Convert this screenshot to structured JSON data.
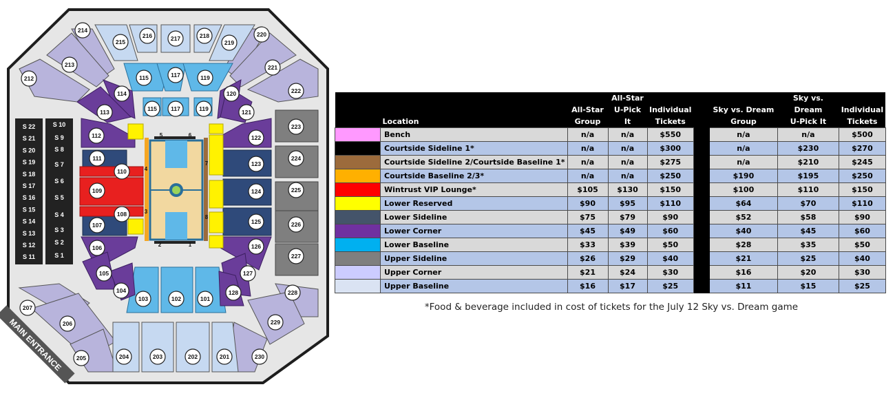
{
  "map": {
    "entrance_label": "MAIN ENTRANCE",
    "court_labels": [
      "5",
      "6",
      "4",
      "3",
      "7",
      "8",
      "2",
      "1"
    ],
    "suites_left": [
      "S 22",
      "S 21",
      "S 20",
      "S 19",
      "S 18",
      "S 17",
      "S 16",
      "S 15",
      "S 14",
      "S 13",
      "S 12",
      "S 11"
    ],
    "suites_right": [
      "S 10",
      "S 9",
      "S 8",
      "S 7",
      "S 6",
      "S 5",
      "S 4",
      "S 3",
      "S 2",
      "S 1"
    ],
    "sections": [
      "214",
      "215",
      "216",
      "217",
      "218",
      "219",
      "220",
      "213",
      "221",
      "212",
      "222",
      "115",
      "117",
      "119",
      "115",
      "117",
      "119",
      "114",
      "120",
      "113",
      "121",
      "223",
      "112",
      "122",
      "111",
      "123",
      "224",
      "110",
      "109",
      "124",
      "225",
      "108",
      "107",
      "125",
      "226",
      "106",
      "126",
      "227",
      "105",
      "127",
      "104",
      "128",
      "228",
      "103",
      "102",
      "101",
      "207",
      "229",
      "206",
      "205",
      "204",
      "203",
      "202",
      "201",
      "230"
    ],
    "colors": {
      "upper_corner": "#b8b4dc",
      "upper_baseline": "#c6d9f1",
      "upper_sideline": "#7f7f7f",
      "lower_corner": "#6a3d9a",
      "lower_sideline": "#2f4a7a",
      "lower_baseline": "#5fb8e8",
      "lower_reserved": "#fff200",
      "wintrust": "#e8201f",
      "courtside": "#f5a623",
      "court": "#f2d8a0"
    }
  },
  "table": {
    "headers": [
      {
        "line1": "",
        "line2": "Location"
      },
      {
        "line1": "All-Star",
        "line2": "Group"
      },
      {
        "line1": "All-Star",
        "line2": "U-Pick It"
      },
      {
        "line1": "Individual",
        "line2": "Tickets"
      },
      {
        "line1": "Sky vs. Dream",
        "line2": "Group"
      },
      {
        "line1": "Sky vs. Dream",
        "line2": "U-Pick It"
      },
      {
        "line1": "Individual",
        "line2": "Tickets"
      }
    ],
    "rows": [
      {
        "color": "#ff99ff",
        "location": "Bench",
        "asg": "n/a",
        "asu": "n/a",
        "asi": "$550",
        "sdg": "n/a",
        "sdu": "n/a",
        "sdi": "$500"
      },
      {
        "color": "#000000",
        "location": "Courtside Sideline 1*",
        "asg": "n/a",
        "asu": "n/a",
        "asi": "$300",
        "sdg": "n/a",
        "sdu": "$230",
        "sdi": "$270"
      },
      {
        "color": "#9c6b3c",
        "location": "Courtside Sideline 2/Courtside Baseline 1*",
        "asg": "n/a",
        "asu": "n/a",
        "asi": "$275",
        "sdg": "n/a",
        "sdu": "$210",
        "sdi": "$245"
      },
      {
        "color": "#ffb000",
        "location": "Courtside Baseline 2/3*",
        "asg": "n/a",
        "asu": "n/a",
        "asi": "$250",
        "sdg": "$190",
        "sdu": "$195",
        "sdi": "$250"
      },
      {
        "color": "#ff0000",
        "location": "Wintrust VIP Lounge*",
        "asg": "$105",
        "asu": "$130",
        "asi": "$150",
        "sdg": "$100",
        "sdu": "$110",
        "sdi": "$150"
      },
      {
        "color": "#ffff00",
        "location": "Lower Reserved",
        "asg": "$90",
        "asu": "$95",
        "asi": "$110",
        "sdg": "$64",
        "sdu": "$70",
        "sdi": "$110"
      },
      {
        "color": "#44546a",
        "location": "Lower Sideline",
        "asg": "$75",
        "asu": "$79",
        "asi": "$90",
        "sdg": "$52",
        "sdu": "$58",
        "sdi": "$90"
      },
      {
        "color": "#7030a0",
        "location": "Lower Corner",
        "asg": "$45",
        "asu": "$49",
        "asi": "$60",
        "sdg": "$40",
        "sdu": "$45",
        "sdi": "$60"
      },
      {
        "color": "#00b0f0",
        "location": "Lower Baseline",
        "asg": "$33",
        "asu": "$39",
        "asi": "$50",
        "sdg": "$28",
        "sdu": "$35",
        "sdi": "$50"
      },
      {
        "color": "#7f7f7f",
        "location": "Upper Sideline",
        "asg": "$26",
        "asu": "$29",
        "asi": "$40",
        "sdg": "$21",
        "sdu": "$25",
        "sdi": "$40"
      },
      {
        "color": "#ccccff",
        "location": "Upper Corner",
        "asg": "$21",
        "asu": "$24",
        "asi": "$30",
        "sdg": "$16",
        "sdu": "$20",
        "sdi": "$30"
      },
      {
        "color": "#dae3f3",
        "location": "Upper Baseline",
        "asg": "$16",
        "asu": "$17",
        "asi": "$25",
        "sdg": "$11",
        "sdu": "$15",
        "sdi": "$25"
      }
    ]
  },
  "footnote": "*Food & beverage included in cost of tickets for the July 12 Sky vs. Dream game"
}
